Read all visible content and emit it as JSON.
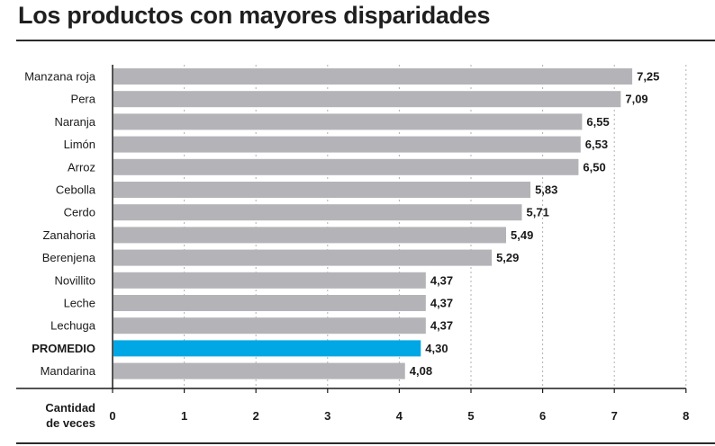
{
  "chart_data": {
    "type": "bar",
    "orientation": "horizontal",
    "title": "Los productos con mayores disparidades",
    "xlabel": [
      "Cantidad",
      "de veces"
    ],
    "categories": [
      "Manzana roja",
      "Pera",
      "Naranja",
      "Limón",
      "Arroz",
      "Cebolla",
      "Cerdo",
      "Zanahoria",
      "Berenjena",
      "Novillito",
      "Leche",
      "Lechuga",
      "PROMEDIO",
      "Mandarina"
    ],
    "values": [
      7.25,
      7.09,
      6.55,
      6.53,
      6.5,
      5.83,
      5.71,
      5.49,
      5.29,
      4.37,
      4.37,
      4.37,
      4.3,
      4.08
    ],
    "value_labels": [
      "7,25",
      "7,09",
      "6,55",
      "6,53",
      "6,50",
      "5,83",
      "5,71",
      "5,49",
      "5,29",
      "4,37",
      "4,37",
      "4,37",
      "4,30",
      "4,08"
    ],
    "highlight_category": "PROMEDIO",
    "xlim": [
      0,
      8
    ],
    "xticks": [
      0,
      1,
      2,
      3,
      4,
      5,
      6,
      7,
      8
    ],
    "grid": "vertical dotted",
    "colors": {
      "bar": "#b4b4b8",
      "highlight": "#00a7e5",
      "axis": "#1a1a1a",
      "grid": "#b0b0b0"
    }
  }
}
